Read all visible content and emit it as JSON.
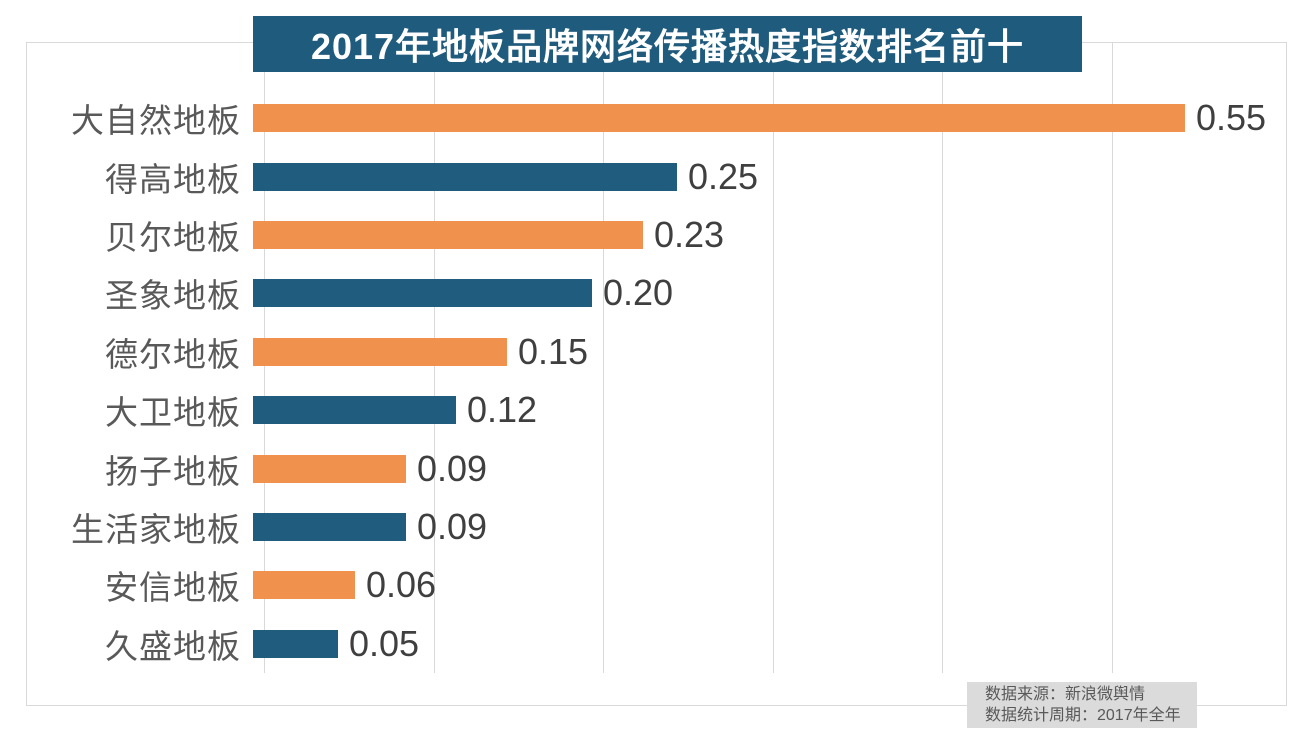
{
  "title": "2017年地板品牌网络传播热度指数排名前十",
  "footer": {
    "source_line": "数据来源：新浪微舆情",
    "period_line": "数据统计周期：2017年全年"
  },
  "colors": {
    "banner_bg": "#1f5b7d",
    "banner_text": "#ffffff",
    "bar_orange": "#f0924d",
    "bar_blue": "#1f5c7e",
    "gridline": "#d9d9d9",
    "border": "#d9d9d9",
    "category_label": "#595959",
    "value_label": "#3f3f3f",
    "footer_bg": "#dbdbdb",
    "footer_text": "#595959"
  },
  "chart_data": {
    "type": "bar",
    "orientation": "horizontal",
    "title": "2017年地板品牌网络传播热度指数排名前十",
    "categories": [
      "大自然地板",
      "得高地板",
      "贝尔地板",
      "圣象地板",
      "德尔地板",
      "大卫地板",
      "扬子地板",
      "生活家地板",
      "安信地板",
      "久盛地板"
    ],
    "values": [
      0.55,
      0.25,
      0.23,
      0.2,
      0.15,
      0.12,
      0.09,
      0.09,
      0.06,
      0.05
    ],
    "value_labels": [
      "0.55",
      "0.25",
      "0.23",
      "0.20",
      "0.15",
      "0.12",
      "0.09",
      "0.09",
      "0.06",
      "0.05"
    ],
    "bar_color_pattern": [
      "#f0924d",
      "#1f5c7e"
    ],
    "xlabel": "",
    "ylabel": "",
    "xlim": [
      0,
      0.6
    ],
    "grid_interval": 0.1,
    "grid": true,
    "legend": false,
    "data_labels": true
  }
}
